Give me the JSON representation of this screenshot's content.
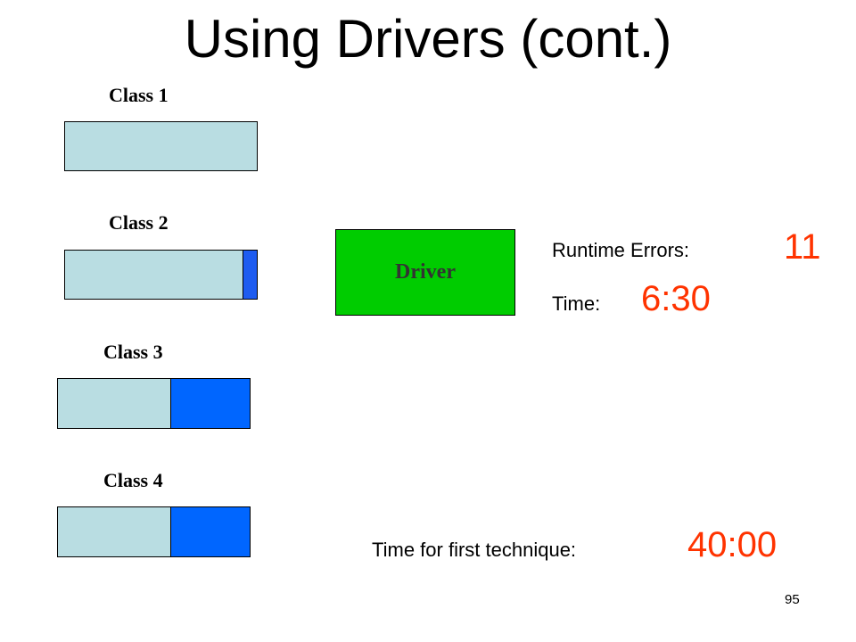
{
  "title": "Using Drivers (cont.)",
  "classes": [
    {
      "label": "Class 1",
      "filled_fraction": 0.0
    },
    {
      "label": "Class 2",
      "filled_fraction": 0.07
    },
    {
      "label": "Class 3",
      "filled_fraction": 0.41
    },
    {
      "label": "Class 4",
      "filled_fraction": 0.41
    }
  ],
  "driver": {
    "label": "Driver"
  },
  "runtime_errors": {
    "label": "Runtime Errors:",
    "value": "11"
  },
  "time": {
    "label": "Time:",
    "value": "6:30"
  },
  "first_technique": {
    "label": "Time for first technique:",
    "value": "40:00"
  },
  "slide_number": "95",
  "colors": {
    "bar_base": "#b9dde2",
    "class2_fill": "#1e5cf0",
    "class34_fill": "#0066ff",
    "driver_fill": "#00cc00",
    "accent_value": "#ff3300"
  }
}
